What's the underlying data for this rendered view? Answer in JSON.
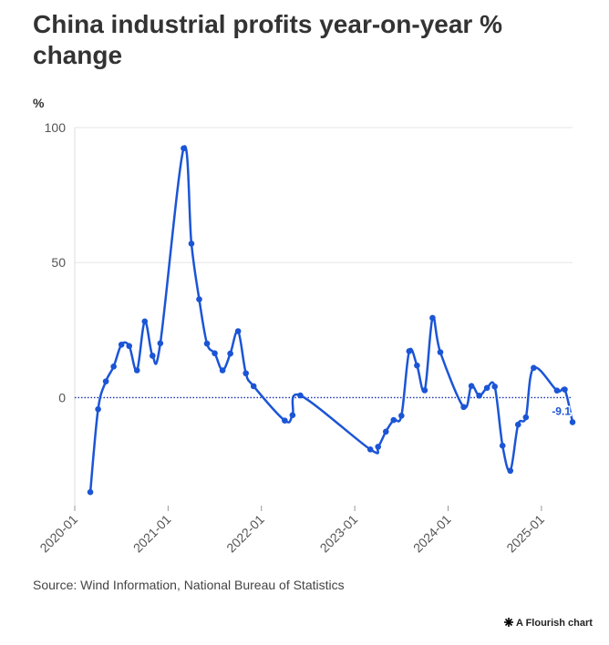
{
  "chart_data": {
    "type": "line",
    "title": "China industrial profits year-on-year % change",
    "ylabel": "%",
    "source": "Source: Wind Information, National Bureau of Statistics",
    "credit": "A Flourish chart",
    "x": [
      "2020-03",
      "2020-04",
      "2020-05",
      "2020-06",
      "2020-07",
      "2020-08",
      "2020-09",
      "2020-10",
      "2020-11",
      "2020-12",
      "2021-03",
      "2021-04",
      "2021-05",
      "2021-06",
      "2021-07",
      "2021-08",
      "2021-09",
      "2021-10",
      "2021-11",
      "2021-12",
      "2022-04",
      "2022-05",
      "2022-06",
      "2023-03",
      "2023-04",
      "2023-05",
      "2023-06",
      "2023-07",
      "2023-08",
      "2023-09",
      "2023-10",
      "2023-11",
      "2023-12",
      "2024-03",
      "2024-04",
      "2024-05",
      "2024-06",
      "2024-07",
      "2024-08",
      "2024-09",
      "2024-10",
      "2024-11",
      "2024-12",
      "2025-03",
      "2025-04",
      "2025-05"
    ],
    "series": [
      {
        "name": "Industrial profits",
        "color": "#1b55d6",
        "values": [
          -35,
          -4.3,
          6,
          11.5,
          19.6,
          19.1,
          10.1,
          28.2,
          15.5,
          20.1,
          92.3,
          57,
          36.4,
          20,
          16.4,
          10.1,
          16.3,
          24.6,
          9,
          4.2,
          -8.5,
          -6.5,
          0.8,
          -19.2,
          -18.2,
          -12.6,
          -8.3,
          -6.7,
          17.2,
          11.9,
          2.7,
          29.5,
          16.8,
          -3.5,
          4.3,
          0.7,
          3.6,
          4.1,
          -17.8,
          -27.1,
          -10,
          -7.3,
          11,
          2.6,
          3,
          -9.1
        ],
        "value_labels": [
          null,
          null,
          null,
          null,
          null,
          null,
          null,
          null,
          null,
          null,
          null,
          null,
          null,
          null,
          null,
          null,
          null,
          null,
          null,
          null,
          null,
          null,
          null,
          null,
          null,
          null,
          null,
          null,
          null,
          null,
          null,
          null,
          null,
          null,
          null,
          null,
          null,
          null,
          null,
          null,
          null,
          null,
          null,
          null,
          null,
          "-9.1"
        ]
      }
    ],
    "xlim": [
      "2020-01",
      "2025-05"
    ],
    "xticks": [
      "2020-01",
      "2021-01",
      "2022-01",
      "2023-01",
      "2024-01",
      "2025-01"
    ],
    "ylim": [
      -40,
      100
    ],
    "yticks": [
      0,
      50,
      100
    ],
    "grid": true,
    "zero_line": true
  }
}
